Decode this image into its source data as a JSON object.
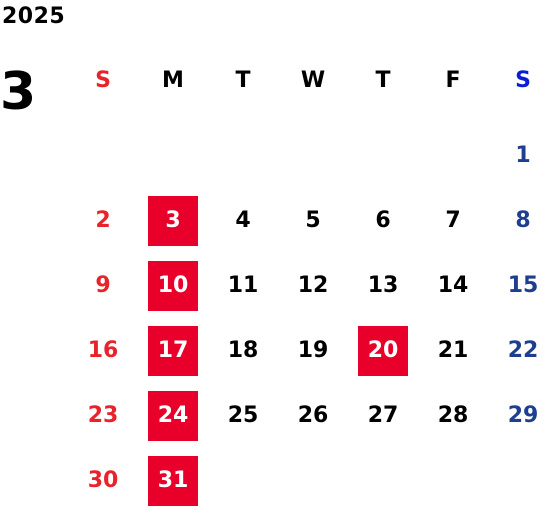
{
  "calendar": {
    "year": "2025",
    "month": "3",
    "weekdays": [
      "S",
      "M",
      "T",
      "W",
      "T",
      "F",
      "S"
    ],
    "colors": {
      "sunday": "#e8232a",
      "saturday": "#1e3f8f",
      "highlight_bg": "#e8002a"
    },
    "weeks": [
      [
        "",
        "",
        "",
        "",
        "",
        "",
        "1"
      ],
      [
        "2",
        "3",
        "4",
        "5",
        "6",
        "7",
        "8"
      ],
      [
        "9",
        "10",
        "11",
        "12",
        "13",
        "14",
        "15"
      ],
      [
        "16",
        "17",
        "18",
        "19",
        "20",
        "21",
        "22"
      ],
      [
        "23",
        "24",
        "25",
        "26",
        "27",
        "28",
        "29"
      ],
      [
        "30",
        "31",
        "",
        "",
        "",
        "",
        ""
      ]
    ],
    "highlighted_days": [
      "3",
      "10",
      "17",
      "20",
      "24",
      "31"
    ]
  }
}
